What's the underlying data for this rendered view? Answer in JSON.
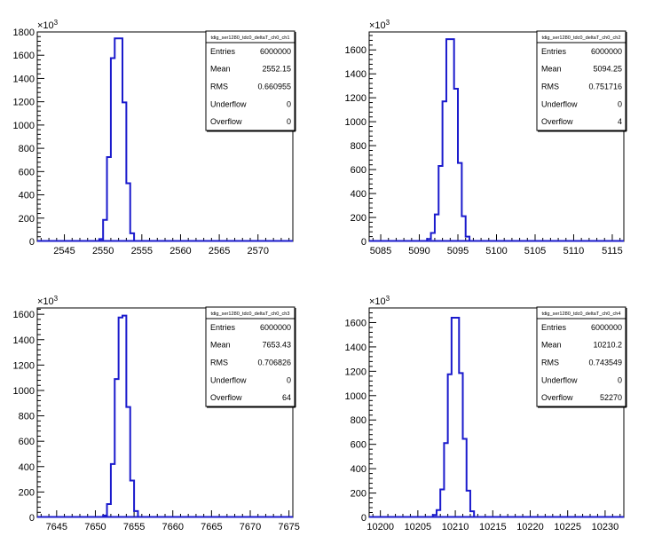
{
  "chart_data": [
    {
      "type": "bar",
      "histogram": true,
      "title": "tdig_ser1280_tdc0_deltaT_ch0_ch1",
      "xlim": [
        2541.5,
        2574.5
      ],
      "xticks": [
        2545,
        2550,
        2555,
        2560,
        2565,
        2570
      ],
      "xtick_labels": [
        "2545",
        "2550",
        "2555",
        "2560",
        "2565",
        "2570"
      ],
      "ylim": [
        0,
        1800
      ],
      "yticks": [
        0,
        200,
        400,
        600,
        800,
        1000,
        1200,
        1400,
        1600,
        1800
      ],
      "ytick_labels": [
        "0",
        "200",
        "400",
        "600",
        "800",
        "1000",
        "1200",
        "1400",
        "1600",
        "1800"
      ],
      "yexponent_label": "×10³",
      "bin_edges": [
        2549.5,
        2550,
        2550.5,
        2551,
        2551.5,
        2552,
        2552.5,
        2553,
        2553.5,
        2554
      ],
      "values": [
        20,
        185,
        725,
        1575,
        1745,
        1745,
        1195,
        500,
        70
      ],
      "stats": [
        {
          "label": "Entries",
          "value": "6000000"
        },
        {
          "label": "Mean",
          "value": "2552.15"
        },
        {
          "label": "RMS",
          "value": "0.660955"
        },
        {
          "label": "Underflow",
          "value": "0"
        },
        {
          "label": "Overflow",
          "value": "0"
        }
      ]
    },
    {
      "type": "bar",
      "histogram": true,
      "title": "tdig_ser1280_tdc0_deltaT_ch0_ch2",
      "xlim": [
        5083.5,
        5116.5
      ],
      "xticks": [
        5085,
        5090,
        5095,
        5100,
        5105,
        5110,
        5115
      ],
      "xtick_labels": [
        "5085",
        "5090",
        "5095",
        "5100",
        "5105",
        "5110",
        "5115"
      ],
      "ylim": [
        0,
        1750
      ],
      "yticks": [
        0,
        200,
        400,
        600,
        800,
        1000,
        1200,
        1400,
        1600
      ],
      "ytick_labels": [
        "0",
        "200",
        "400",
        "600",
        "800",
        "1000",
        "1200",
        "1400",
        "1600"
      ],
      "yexponent_label": "×10³",
      "bin_edges": [
        5091,
        5091.5,
        5092,
        5092.5,
        5093,
        5093.5,
        5094,
        5094.5,
        5095,
        5095.5,
        5096,
        5096.5
      ],
      "values": [
        20,
        70,
        225,
        630,
        1170,
        1690,
        1690,
        1275,
        655,
        210,
        40
      ],
      "stats": [
        {
          "label": "Entries",
          "value": "6000000"
        },
        {
          "label": "Mean",
          "value": "5094.25"
        },
        {
          "label": "RMS",
          "value": "0.751716"
        },
        {
          "label": "Underflow",
          "value": "0"
        },
        {
          "label": "Overflow",
          "value": "4"
        }
      ]
    },
    {
      "type": "bar",
      "histogram": true,
      "title": "tdig_ser1280_tdc0_deltaT_ch0_ch3",
      "xlim": [
        7642.5,
        7675.5
      ],
      "xticks": [
        7645,
        7650,
        7655,
        7660,
        7665,
        7670,
        7675
      ],
      "xtick_labels": [
        "7645",
        "7650",
        "7655",
        "7660",
        "7665",
        "7670",
        "7675"
      ],
      "ylim": [
        0,
        1650
      ],
      "yticks": [
        0,
        200,
        400,
        600,
        800,
        1000,
        1200,
        1400,
        1600
      ],
      "ytick_labels": [
        "0",
        "200",
        "400",
        "600",
        "800",
        "1000",
        "1200",
        "1400",
        "1600"
      ],
      "yexponent_label": "×10³",
      "bin_edges": [
        7651,
        7651.5,
        7652,
        7652.5,
        7653,
        7653.5,
        7654,
        7654.5,
        7655,
        7655.5
      ],
      "values": [
        15,
        105,
        420,
        1090,
        1575,
        1590,
        870,
        290,
        50
      ],
      "stats": [
        {
          "label": "Entries",
          "value": "6000000"
        },
        {
          "label": "Mean",
          "value": "7653.43"
        },
        {
          "label": "RMS",
          "value": "0.706826"
        },
        {
          "label": "Underflow",
          "value": "0"
        },
        {
          "label": "Overflow",
          "value": "64"
        }
      ]
    },
    {
      "type": "bar",
      "histogram": true,
      "title": "tdig_ser1280_tdc0_deltaT_ch0_ch4",
      "xlim": [
        10198.5,
        10232.5
      ],
      "xticks": [
        10200,
        10205,
        10210,
        10215,
        10220,
        10225,
        10230
      ],
      "xtick_labels": [
        "10200",
        "10205",
        "10210",
        "10215",
        "10220",
        "10225",
        "10230"
      ],
      "ylim": [
        0,
        1720
      ],
      "yticks": [
        0,
        200,
        400,
        600,
        800,
        1000,
        1200,
        1400,
        1600
      ],
      "ytick_labels": [
        "0",
        "200",
        "400",
        "600",
        "800",
        "1000",
        "1200",
        "1400",
        "1600"
      ],
      "yexponent_label": "×10³",
      "bin_edges": [
        10207,
        10207.5,
        10208,
        10208.5,
        10209,
        10209.5,
        10210,
        10210.5,
        10211,
        10211.5,
        10212,
        10212.5
      ],
      "values": [
        20,
        60,
        230,
        610,
        1175,
        1640,
        1640,
        1185,
        645,
        220,
        50
      ],
      "stats": [
        {
          "label": "Entries",
          "value": "6000000"
        },
        {
          "label": "Mean",
          "value": "10210.2"
        },
        {
          "label": "RMS",
          "value": "0.743549"
        },
        {
          "label": "Underflow",
          "value": "0"
        },
        {
          "label": "Overflow",
          "value": "52270"
        }
      ]
    }
  ],
  "colors": {
    "histogram_line": "#1a1acc",
    "frame": "#000000",
    "background": "#ffffff"
  }
}
